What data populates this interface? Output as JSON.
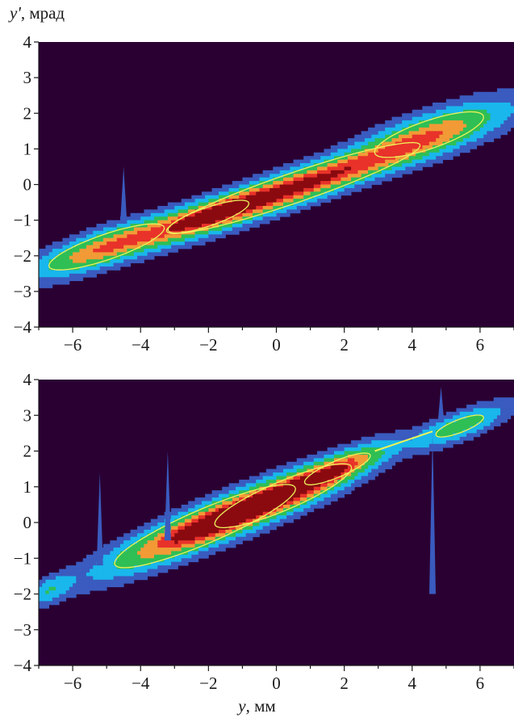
{
  "y_axis_label": {
    "symbol": "y'",
    "unit": ", мрад"
  },
  "x_axis_label": {
    "symbol": "y",
    "unit": ", мм"
  },
  "colors": {
    "background": "#2a0033",
    "levels": [
      "#3a5bbf",
      "#19b7ec",
      "#2fbf55",
      "#f29a36",
      "#e8322a",
      "#8a0a10"
    ],
    "contour": "#eef25a"
  },
  "chart_data": [
    {
      "type": "heatmap",
      "title": "",
      "xlabel": "",
      "ylabel": "y', мрад",
      "xlim": [
        -7,
        7
      ],
      "ylim": [
        -4,
        4
      ],
      "x_ticks": [
        -6,
        -4,
        -2,
        0,
        2,
        4,
        6
      ],
      "y_ticks": [
        -4,
        -3,
        -2,
        -1,
        0,
        1,
        2,
        3,
        4
      ],
      "x_tick_labels": [
        "−6",
        "−4",
        "−2",
        "0",
        "2",
        "4",
        "6"
      ],
      "y_tick_labels": [
        "−4",
        "−3",
        "−2",
        "−1",
        "0",
        "1",
        "2",
        "3",
        "4"
      ],
      "description_of_distribution": "phase-space density, slope ~0.33 mrad/mm",
      "blobs": [
        {
          "cx": 0.5,
          "cy": -0.1,
          "sx": 2.6,
          "sy": 0.28,
          "angle_deg": 18,
          "peak": 1.0
        },
        {
          "cx": -5.0,
          "cy": -1.75,
          "sx": 1.4,
          "sy": 0.28,
          "angle_deg": 18,
          "peak": 0.72
        },
        {
          "cx": 4.5,
          "cy": 1.4,
          "sx": 1.5,
          "sy": 0.35,
          "angle_deg": 18,
          "peak": 0.6
        },
        {
          "cx": -2.0,
          "cy": -0.9,
          "sx": 1.2,
          "sy": 0.25,
          "angle_deg": 18,
          "peak": 0.55
        }
      ],
      "spikes": [
        {
          "x": -4.5,
          "y_from": -1.0,
          "y_to": 0.5
        }
      ]
    },
    {
      "type": "heatmap",
      "title": "",
      "xlabel": "y, мм",
      "ylabel": "",
      "xlim": [
        -7,
        7
      ],
      "ylim": [
        -4,
        4
      ],
      "x_ticks": [
        -6,
        -4,
        -2,
        0,
        2,
        4,
        6
      ],
      "y_ticks": [
        -4,
        -3,
        -2,
        -1,
        0,
        1,
        2,
        3,
        4
      ],
      "x_tick_labels": [
        "−6",
        "−4",
        "−2",
        "0",
        "2",
        "4",
        "6"
      ],
      "y_tick_labels": [
        "−4",
        "−3",
        "−2",
        "−1",
        "0",
        "1",
        "2",
        "3",
        "4"
      ],
      "blobs": [
        {
          "cx": -2.1,
          "cy": -0.1,
          "sx": 1.9,
          "sy": 0.32,
          "angle_deg": 22,
          "peak": 1.0
        },
        {
          "cx": 0.2,
          "cy": 0.75,
          "sx": 1.6,
          "sy": 0.3,
          "angle_deg": 22,
          "peak": 0.8
        },
        {
          "cx": 1.8,
          "cy": 1.5,
          "sx": 1.0,
          "sy": 0.22,
          "angle_deg": 22,
          "peak": 0.55
        },
        {
          "cx": 5.4,
          "cy": 2.7,
          "sx": 0.9,
          "sy": 0.22,
          "angle_deg": 20,
          "peak": 0.45
        },
        {
          "cx": -6.7,
          "cy": -1.9,
          "sx": 0.5,
          "sy": 0.2,
          "angle_deg": 25,
          "peak": 0.3
        }
      ],
      "spikes": [
        {
          "x": -5.2,
          "y_from": -1.2,
          "y_to": 1.4
        },
        {
          "x": -3.2,
          "y_from": -0.5,
          "y_to": 2.0
        },
        {
          "x": 4.6,
          "y_from": -2.0,
          "y_to": 2.5
        },
        {
          "x": 4.85,
          "y_from": 2.8,
          "y_to": 3.8
        }
      ],
      "link_line": {
        "from": [
          2.9,
          2.0
        ],
        "to": [
          4.6,
          2.55
        ]
      }
    }
  ]
}
